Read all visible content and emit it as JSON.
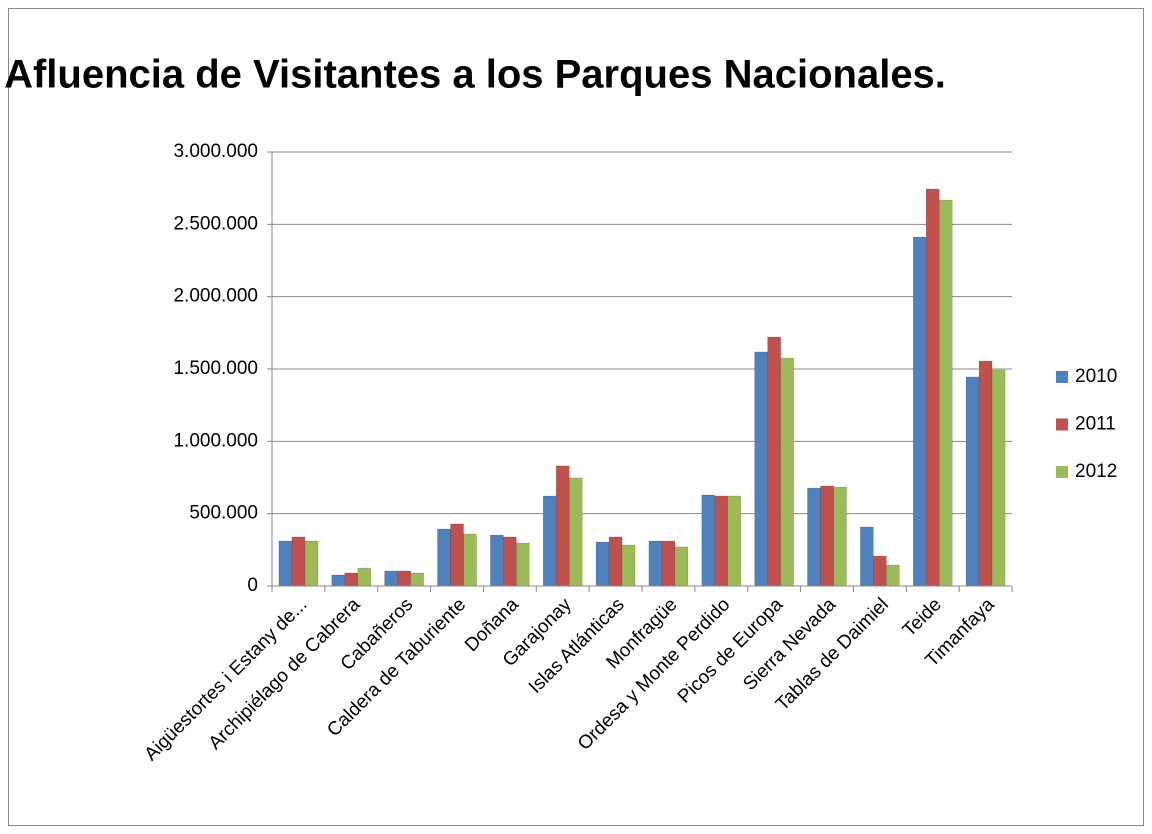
{
  "chart_data": {
    "type": "bar",
    "title": "Afluencia de Visitantes a los Parques Nacionales.",
    "categories": [
      "Aigüestortes i Estany de...",
      "Archipiélago de Cabrera",
      "Cabañeros",
      "Caldera de Taburiente",
      "Doñana",
      "Garajonay",
      "Islas Atlánticas",
      "Monfragüe",
      "Ordesa y Monte Perdido",
      "Picos de Europa",
      "Sierra Nevada",
      "Tablas de Daimiel",
      "Teide",
      "Timanfaya"
    ],
    "series": [
      {
        "name": "2010",
        "color": "#4f81bd",
        "values": [
          311000,
          76000,
          104000,
          394000,
          352000,
          622000,
          304000,
          311000,
          629000,
          1618000,
          677000,
          408000,
          2412000,
          1445000
        ]
      },
      {
        "name": "2011",
        "color": "#c0504d",
        "values": [
          339000,
          90000,
          104000,
          429000,
          339000,
          830000,
          339000,
          311000,
          622000,
          1721000,
          691000,
          207000,
          2744000,
          1555000
        ]
      },
      {
        "name": "2012",
        "color": "#9bbb59",
        "values": [
          311000,
          124000,
          90000,
          359000,
          297000,
          747000,
          283000,
          270000,
          622000,
          1576000,
          684000,
          145000,
          2668000,
          1493000
        ]
      }
    ],
    "ylim": [
      0,
      3000000
    ],
    "yticks": [
      0,
      {
        "value": 500000,
        "label": "500.000"
      },
      {
        "value": 1000000,
        "label": "1.000.000"
      },
      {
        "value": 1500000,
        "label": "1.500.000"
      },
      {
        "value": 2000000,
        "label": "2.000.000"
      },
      {
        "value": 2500000,
        "label": "2.500.000"
      },
      {
        "value": 3000000,
        "label": "3.000.000"
      }
    ],
    "grid": true,
    "legend": "right"
  }
}
